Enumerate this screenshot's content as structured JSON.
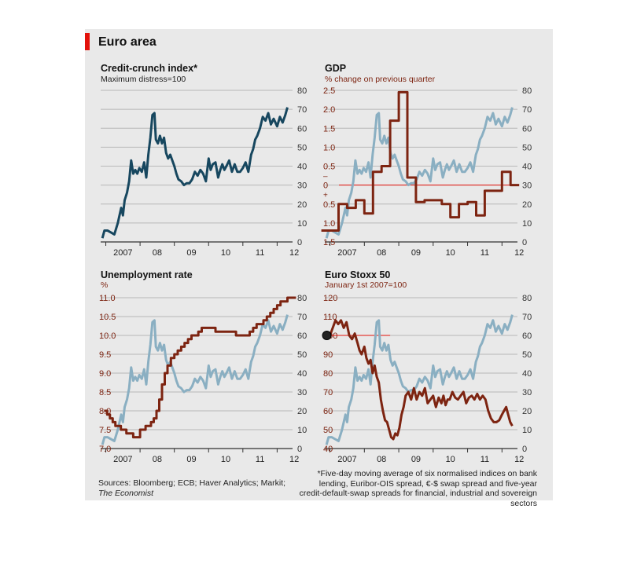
{
  "title": "Euro area",
  "sources": {
    "prefix": "Sources: Bloomberg; ECB; Haver Analytics; Markit; ",
    "italic": "The Economist"
  },
  "footnote": "*Five-day moving average of six normalised indices on bank lending, Euribor-OIS spread, €-$ swap spread and five-year credit-default-swap spreads for financial, industrial and sovereign sectors",
  "colors": {
    "index_line": "#17475f",
    "index_light": "#8aafc2",
    "brown": "#7d2411",
    "grid": "#b8b8b8",
    "zero_line": "#e3120b"
  },
  "chart_data": [
    {
      "id": "credit-crunch",
      "type": "line",
      "title": "Credit-crunch index*",
      "subtitle": "Maximum distress=100",
      "x_ticks": [
        "2007",
        "08",
        "09",
        "10",
        "11",
        "12"
      ],
      "right_axis": {
        "ticks": [
          0,
          10,
          20,
          30,
          40,
          50,
          60,
          70,
          80
        ],
        "range": [
          0,
          80
        ]
      },
      "grid": true,
      "series": [
        {
          "axis": "right",
          "color": "#17475f",
          "x": [
            2006.9,
            2006.96,
            2007.05,
            2007.15,
            2007.25,
            2007.35,
            2007.45,
            2007.5,
            2007.55,
            2007.62,
            2007.68,
            2007.74,
            2007.8,
            2007.86,
            2007.92,
            2007.98,
            2008.05,
            2008.12,
            2008.18,
            2008.24,
            2008.3,
            2008.36,
            2008.42,
            2008.46,
            2008.52,
            2008.58,
            2008.64,
            2008.7,
            2008.76,
            2008.82,
            2008.88,
            2008.94,
            2009.0,
            2009.06,
            2009.12,
            2009.2,
            2009.28,
            2009.36,
            2009.44,
            2009.52,
            2009.6,
            2009.68,
            2009.76,
            2009.84,
            2009.92,
            2010.0,
            2010.06,
            2010.12,
            2010.2,
            2010.28,
            2010.34,
            2010.4,
            2010.46,
            2010.52,
            2010.6,
            2010.68,
            2010.76,
            2010.84,
            2010.92,
            2011.0,
            2011.08,
            2011.16,
            2011.24,
            2011.3,
            2011.36,
            2011.42,
            2011.5,
            2011.58,
            2011.66,
            2011.74,
            2011.82,
            2011.9,
            2012.0,
            2012.08,
            2012.16,
            2012.24,
            2012.3
          ],
          "y": [
            2,
            6,
            6,
            5,
            4,
            10,
            18,
            14,
            22,
            26,
            32,
            43,
            36,
            38,
            36,
            39,
            37,
            42,
            34,
            46,
            55,
            67,
            68,
            54,
            52,
            56,
            52,
            55,
            47,
            44,
            46,
            43,
            40,
            36,
            33,
            32,
            30,
            31,
            31,
            33,
            37,
            35,
            38,
            36,
            32,
            44,
            38,
            41,
            42,
            34,
            38,
            41,
            38,
            40,
            43,
            37,
            41,
            37,
            37,
            39,
            42,
            37,
            46,
            49,
            54,
            56,
            60,
            66,
            64,
            68,
            62,
            65,
            61,
            66,
            63,
            67,
            71
          ]
        }
      ]
    },
    {
      "id": "gdp",
      "type": "line",
      "title": "GDP",
      "subtitle": "% change on previous quarter",
      "x_ticks": [
        "2007",
        "08",
        "09",
        "10",
        "11",
        "12"
      ],
      "left_axis": {
        "tick_labels": [
          "1.5",
          "1.0",
          "0.5",
          "+",
          "0",
          "–",
          "0.5",
          "1.0",
          "1.5",
          "2.0",
          "2.5"
        ],
        "range": [
          1.5,
          -2.5
        ]
      },
      "right_axis": {
        "ticks": [
          0,
          10,
          20,
          30,
          40,
          50,
          60,
          70,
          80
        ],
        "range": [
          0,
          80
        ]
      },
      "zero_line": true,
      "grid": true,
      "series": [
        {
          "axis": "left",
          "step": true,
          "color": "#7d2411",
          "x": [
            2006.75,
            2007.0,
            2007.25,
            2007.5,
            2007.75,
            2008.0,
            2008.25,
            2008.5,
            2008.75,
            2009.0,
            2009.25,
            2009.5,
            2009.75,
            2010.0,
            2010.25,
            2010.5,
            2010.75,
            2011.0,
            2011.25,
            2011.5,
            2011.75,
            2012.0,
            2012.25
          ],
          "y": [
            1.2,
            1.2,
            0.5,
            0.6,
            0.4,
            0.75,
            -0.35,
            -0.5,
            -1.7,
            -2.45,
            -0.2,
            0.45,
            0.4,
            0.4,
            0.5,
            0.85,
            0.5,
            0.45,
            0.8,
            0.15,
            0.15,
            -0.35,
            0.0
          ]
        },
        {
          "axis": "right",
          "color": "#8aafc2",
          "ref": "credit-crunch"
        }
      ]
    },
    {
      "id": "unemployment",
      "type": "line",
      "title": "Unemployment rate",
      "subtitle": "%",
      "x_ticks": [
        "2007",
        "08",
        "09",
        "10",
        "11",
        "12"
      ],
      "left_axis": {
        "ticks": [
          7.0,
          7.5,
          8.0,
          8.5,
          9.0,
          9.5,
          10.0,
          10.5,
          11.0
        ],
        "range": [
          7.0,
          11.0
        ]
      },
      "right_axis": {
        "ticks": [
          0,
          10,
          20,
          30,
          40,
          50,
          60,
          70,
          80
        ],
        "range": [
          0,
          80
        ]
      },
      "grid": true,
      "series": [
        {
          "axis": "left",
          "step": true,
          "color": "#7d2411",
          "x": [
            2006.95,
            2007.04,
            2007.12,
            2007.2,
            2007.28,
            2007.36,
            2007.44,
            2007.52,
            2007.6,
            2007.7,
            2007.8,
            2007.9,
            2008.0,
            2008.08,
            2008.16,
            2008.24,
            2008.32,
            2008.4,
            2008.48,
            2008.56,
            2008.64,
            2008.72,
            2008.8,
            2008.9,
            2009.0,
            2009.1,
            2009.2,
            2009.3,
            2009.4,
            2009.5,
            2009.6,
            2009.7,
            2009.8,
            2010.0,
            2010.2,
            2010.4,
            2010.6,
            2010.8,
            2011.0,
            2011.2,
            2011.3,
            2011.4,
            2011.5,
            2011.6,
            2011.7,
            2011.8,
            2011.9,
            2012.0,
            2012.1,
            2012.2,
            2012.3
          ],
          "y": [
            8.0,
            7.9,
            7.8,
            7.7,
            7.6,
            7.6,
            7.5,
            7.5,
            7.4,
            7.4,
            7.3,
            7.3,
            7.5,
            7.5,
            7.6,
            7.6,
            7.7,
            7.8,
            8.0,
            8.3,
            8.7,
            9.0,
            9.2,
            9.4,
            9.5,
            9.6,
            9.7,
            9.8,
            9.9,
            10.0,
            10.0,
            10.1,
            10.2,
            10.2,
            10.1,
            10.1,
            10.1,
            10.0,
            10.0,
            10.1,
            10.2,
            10.3,
            10.3,
            10.4,
            10.5,
            10.6,
            10.7,
            10.8,
            10.9,
            10.9,
            11.0
          ]
        },
        {
          "axis": "right",
          "color": "#8aafc2",
          "ref": "credit-crunch"
        }
      ]
    },
    {
      "id": "euro-stoxx",
      "type": "line",
      "title": "Euro Stoxx 50",
      "subtitle": "January 1st 2007=100",
      "x_ticks": [
        "2007",
        "08",
        "09",
        "10",
        "11",
        "12"
      ],
      "left_axis": {
        "ticks": [
          40,
          50,
          60,
          70,
          80,
          90,
          100,
          110,
          120
        ],
        "range": [
          40,
          120
        ]
      },
      "right_axis": {
        "ticks": [
          0,
          10,
          20,
          30,
          40,
          50,
          60,
          70,
          80
        ],
        "range": [
          0,
          80
        ]
      },
      "reference_line": {
        "y": 100,
        "x_end": 2008.75
      },
      "marker": {
        "x": 2007.0,
        "y": 100
      },
      "grid": true,
      "series": [
        {
          "axis": "left",
          "color": "#7d2411",
          "x": [
            2007.0,
            2007.08,
            2007.16,
            2007.24,
            2007.32,
            2007.4,
            2007.48,
            2007.56,
            2007.64,
            2007.72,
            2007.8,
            2007.86,
            2007.92,
            2008.0,
            2008.06,
            2008.12,
            2008.18,
            2008.24,
            2008.3,
            2008.36,
            2008.42,
            2008.48,
            2008.54,
            2008.6,
            2008.66,
            2008.72,
            2008.78,
            2008.84,
            2008.9,
            2008.96,
            2009.02,
            2009.08,
            2009.14,
            2009.2,
            2009.28,
            2009.36,
            2009.44,
            2009.52,
            2009.6,
            2009.68,
            2009.76,
            2009.84,
            2009.92,
            2010.0,
            2010.08,
            2010.16,
            2010.24,
            2010.3,
            2010.36,
            2010.42,
            2010.48,
            2010.56,
            2010.64,
            2010.72,
            2010.8,
            2010.88,
            2010.96,
            2011.04,
            2011.12,
            2011.2,
            2011.28,
            2011.36,
            2011.44,
            2011.52,
            2011.6,
            2011.68,
            2011.76,
            2011.84,
            2011.92,
            2012.0,
            2012.06,
            2012.12,
            2012.18,
            2012.24,
            2012.3
          ],
          "y": [
            100,
            104,
            108,
            106,
            108,
            104,
            107,
            100,
            98,
            101,
            96,
            92,
            90,
            94,
            88,
            85,
            87,
            80,
            84,
            78,
            75,
            66,
            60,
            55,
            54,
            50,
            46,
            45,
            48,
            47,
            51,
            58,
            62,
            68,
            70,
            66,
            72,
            66,
            70,
            68,
            72,
            64,
            66,
            68,
            62,
            67,
            64,
            68,
            63,
            66,
            66,
            70,
            67,
            66,
            68,
            70,
            64,
            67,
            68,
            66,
            69,
            66,
            68,
            66,
            60,
            56,
            54,
            54,
            55,
            58,
            60,
            62,
            58,
            54,
            52
          ]
        },
        {
          "axis": "right",
          "color": "#8aafc2",
          "ref": "credit-crunch"
        }
      ]
    }
  ]
}
